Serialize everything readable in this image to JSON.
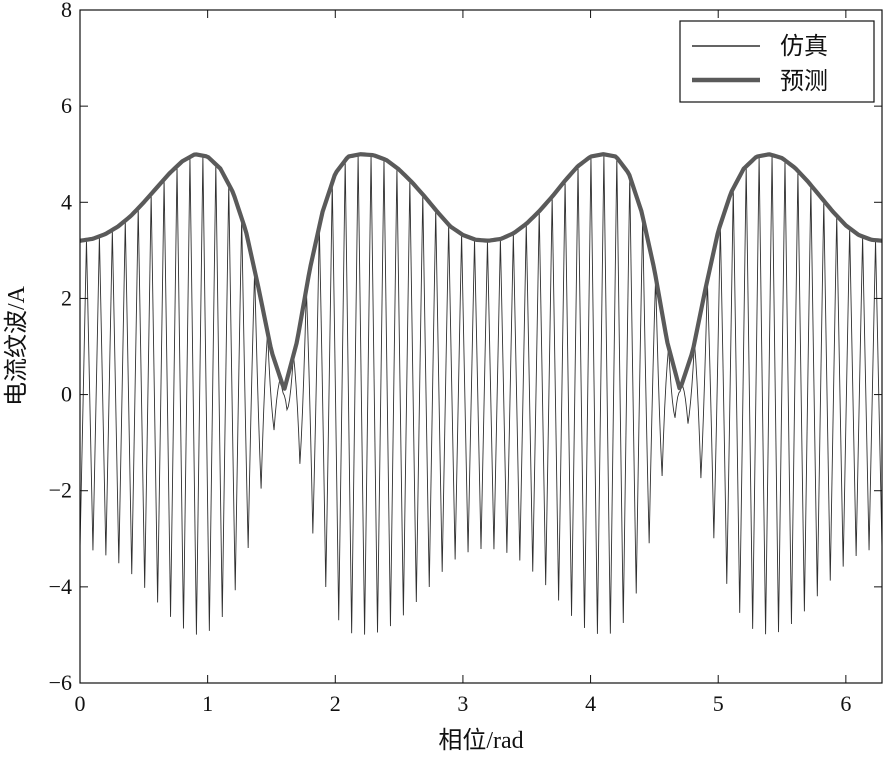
{
  "chart_data": {
    "type": "line",
    "xlabel": "相位/rad",
    "ylabel": "电流纹波/A",
    "xlim": [
      0,
      6.2832
    ],
    "ylim": [
      -6,
      8
    ],
    "xticks": [
      0,
      1,
      2,
      3,
      4,
      5,
      6
    ],
    "yticks": [
      -6,
      -4,
      -2,
      0,
      2,
      4,
      6,
      8
    ],
    "xtick_labels": [
      "0",
      "1",
      "2",
      "3",
      "4",
      "5",
      "6"
    ],
    "ytick_labels": [
      "−6",
      "−4",
      "−2",
      "0",
      "2",
      "4",
      "6",
      "8"
    ],
    "grid": false,
    "legend_position": "top-right",
    "colors": {
      "simulation": "#303030",
      "prediction": "#5a5a5a"
    },
    "series": [
      {
        "name": "仿真",
        "style": "thin oscillating waveform filling the ripple envelope (switching ripple, approx. 62 cycles over 0–2π)",
        "envelope_x": [
          0,
          0.1,
          0.2,
          0.3,
          0.4,
          0.5,
          0.6,
          0.7,
          0.8,
          0.9,
          1.0,
          1.1,
          1.2,
          1.3,
          1.4,
          1.5,
          1.6,
          1.7,
          1.8,
          1.9,
          2.0,
          2.1,
          2.2,
          2.3,
          2.4,
          2.5,
          2.6,
          2.7,
          2.8,
          2.9,
          3.0,
          3.1,
          3.2,
          3.3,
          3.4,
          3.5,
          3.6,
          3.7,
          3.8,
          3.9,
          4.0,
          4.1,
          4.2,
          4.3,
          4.4,
          4.5,
          4.6,
          4.7,
          4.8,
          4.9,
          5.0,
          5.1,
          5.2,
          5.3,
          5.4,
          5.5,
          5.6,
          5.7,
          5.8,
          5.9,
          6.0,
          6.1,
          6.2,
          6.28
        ],
        "envelope_upper": [
          3.2,
          3.24,
          3.34,
          3.5,
          3.72,
          4.0,
          4.3,
          4.6,
          4.85,
          5.0,
          4.95,
          4.7,
          4.2,
          3.4,
          2.2,
          0.9,
          0.1,
          1.1,
          2.6,
          3.8,
          4.6,
          4.95,
          5.0,
          4.98,
          4.88,
          4.68,
          4.42,
          4.12,
          3.8,
          3.5,
          3.32,
          3.22,
          3.2,
          3.24,
          3.36,
          3.56,
          3.82,
          4.12,
          4.45,
          4.75,
          4.95,
          5.0,
          4.95,
          4.6,
          3.8,
          2.6,
          1.1,
          0.1,
          0.9,
          2.2,
          3.4,
          4.2,
          4.7,
          4.95,
          5.0,
          4.92,
          4.72,
          4.44,
          4.12,
          3.8,
          3.52,
          3.32,
          3.22,
          3.2
        ],
        "envelope_lower": [
          -3.2,
          -3.24,
          -3.34,
          -3.5,
          -3.72,
          -4.0,
          -4.3,
          -4.6,
          -4.85,
          -5.0,
          -4.95,
          -4.7,
          -4.2,
          -3.4,
          -2.2,
          -0.9,
          -0.1,
          -1.1,
          -2.6,
          -3.8,
          -4.6,
          -4.95,
          -5.0,
          -4.98,
          -4.88,
          -4.68,
          -4.42,
          -4.12,
          -3.8,
          -3.5,
          -3.32,
          -3.22,
          -3.2,
          -3.24,
          -3.36,
          -3.56,
          -3.82,
          -4.12,
          -4.45,
          -4.75,
          -4.95,
          -5.0,
          -4.95,
          -4.6,
          -3.8,
          -2.6,
          -1.1,
          -0.1,
          -0.9,
          -2.2,
          -3.4,
          -4.2,
          -4.7,
          -4.95,
          -5.0,
          -4.92,
          -4.72,
          -4.44,
          -4.12,
          -3.8,
          -3.52,
          -3.32,
          -3.22,
          -3.2
        ]
      },
      {
        "name": "预测",
        "style": "thick line along the upper envelope",
        "x": [
          0,
          0.1,
          0.2,
          0.3,
          0.4,
          0.5,
          0.6,
          0.7,
          0.8,
          0.9,
          1.0,
          1.1,
          1.2,
          1.3,
          1.4,
          1.5,
          1.6,
          1.7,
          1.8,
          1.9,
          2.0,
          2.1,
          2.2,
          2.3,
          2.4,
          2.5,
          2.6,
          2.7,
          2.8,
          2.9,
          3.0,
          3.1,
          3.2,
          3.3,
          3.4,
          3.5,
          3.6,
          3.7,
          3.8,
          3.9,
          4.0,
          4.1,
          4.2,
          4.3,
          4.4,
          4.5,
          4.6,
          4.7,
          4.8,
          4.9,
          5.0,
          5.1,
          5.2,
          5.3,
          5.4,
          5.5,
          5.6,
          5.7,
          5.8,
          5.9,
          6.0,
          6.1,
          6.2,
          6.28
        ],
        "y": [
          3.2,
          3.24,
          3.34,
          3.5,
          3.72,
          4.0,
          4.3,
          4.6,
          4.85,
          5.0,
          4.95,
          4.7,
          4.2,
          3.4,
          2.2,
          0.9,
          0.1,
          1.1,
          2.6,
          3.8,
          4.6,
          4.95,
          5.0,
          4.98,
          4.88,
          4.68,
          4.42,
          4.12,
          3.8,
          3.5,
          3.32,
          3.22,
          3.2,
          3.24,
          3.36,
          3.56,
          3.82,
          4.12,
          4.45,
          4.75,
          4.95,
          5.0,
          4.95,
          4.6,
          3.8,
          2.6,
          1.1,
          0.1,
          0.9,
          2.2,
          3.4,
          4.2,
          4.7,
          4.95,
          5.0,
          4.92,
          4.72,
          4.44,
          4.12,
          3.8,
          3.52,
          3.32,
          3.22,
          3.2
        ]
      }
    ]
  }
}
